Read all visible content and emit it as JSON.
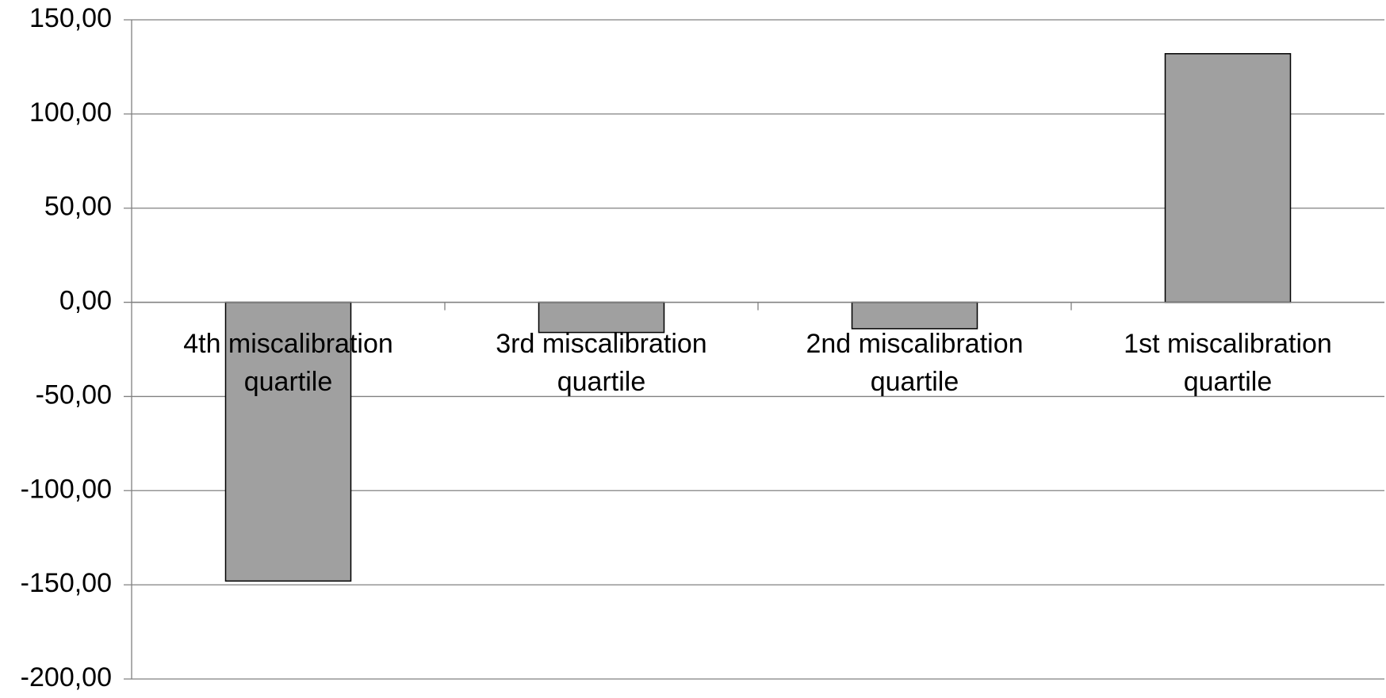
{
  "chart_data": {
    "type": "bar",
    "categories": [
      "4th miscalibration quartile",
      "3rd miscalibration quartile",
      "2nd miscalibration quartile",
      "1st miscalibration quartile"
    ],
    "values": [
      -148,
      -16,
      -14,
      132
    ],
    "color": "#a0a0a0",
    "ylim": [
      -200,
      150
    ],
    "yticks": [
      {
        "value": -200,
        "label": "-200,00"
      },
      {
        "value": -150,
        "label": "-150,00"
      },
      {
        "value": -100,
        "label": "-100,00"
      },
      {
        "value": -50,
        "label": "-50,00"
      },
      {
        "value": 0,
        "label": "0,00"
      },
      {
        "value": 50,
        "label": "50,00"
      },
      {
        "value": 100,
        "label": "100,00"
      },
      {
        "value": 150,
        "label": "150,00"
      }
    ],
    "grid": true
  }
}
